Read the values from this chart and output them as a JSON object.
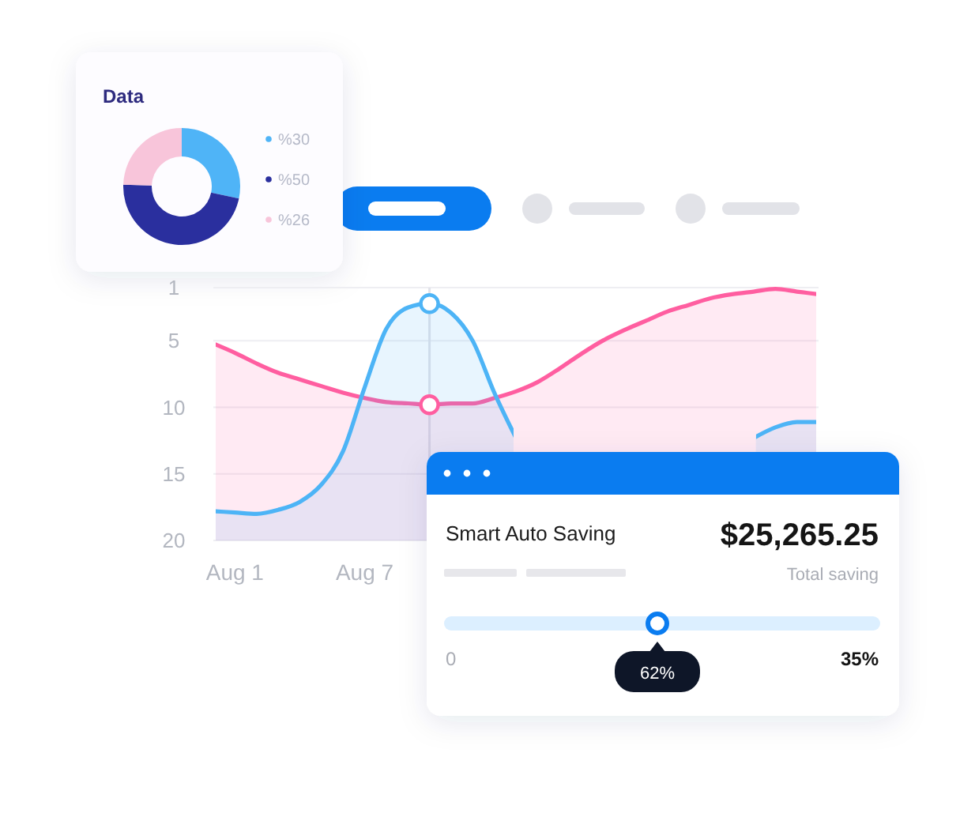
{
  "chart_data": [
    {
      "type": "donut",
      "title": "Data",
      "categories": [
        "%30",
        "%50",
        "%26"
      ],
      "values": [
        30,
        50,
        26
      ],
      "colors": [
        "#4fb4f7",
        "#2a2f9e",
        "#f8c5da"
      ],
      "legend": "right"
    },
    {
      "type": "area",
      "x": [
        "--07-31",
        "--08-01",
        "--08-02",
        "--08-03",
        "--08-04",
        "--08-05",
        "--08-06",
        "--08-07",
        "--08-08",
        "--08-09",
        "--08-10",
        "--08-11",
        "--08-12",
        "--08-13",
        "--08-14",
        "--08-15",
        "--08-16",
        "--08-17",
        "--08-18",
        "--08-19",
        "--08-20",
        "--08-21",
        "--08-22",
        "--08-23",
        "--08-24",
        "--08-25",
        "--08-26",
        "--08-27",
        "--08-28"
      ],
      "series": [
        {
          "color": "#ff5ea0",
          "values": [
            5.2,
            5.9,
            6.7,
            7.4,
            7.9,
            8.4,
            8.9,
            9.3,
            9.6,
            9.7,
            9.8,
            9.7,
            9.7,
            9.3,
            8.8,
            8.1,
            7.1,
            6.0,
            5.0,
            4.2,
            3.5,
            2.8,
            2.3,
            1.8,
            1.5,
            1.3,
            1.1,
            1.3,
            1.5
          ]
        },
        {
          "color": "#4db4f6",
          "values": [
            17.8,
            17.9,
            18,
            17.7,
            17.1,
            15.8,
            13.3,
            8.5,
            4.1,
            2.5,
            2.2,
            2.9,
            5,
            8.9,
            12.3,
            null,
            null,
            null,
            null,
            null,
            null,
            null,
            null,
            null,
            null,
            12.3,
            11.5,
            11.1,
            11.1
          ]
        },
        {
          "type": "scatter",
          "color": "#4db4f6",
          "x": [
            "--08-10"
          ],
          "values": [
            2.2
          ],
          "marker": "circle"
        },
        {
          "type": "scatter",
          "color": "#ff5ea0",
          "x": [
            "--08-10"
          ],
          "values": [
            9.8
          ],
          "marker": "circle"
        }
      ],
      "xlim": [
        "--07-31",
        "--08-28"
      ],
      "xticks": [
        {
          "value": "--08-01",
          "label": "Aug 1"
        },
        {
          "value": "--08-07",
          "label": "Aug 7"
        }
      ],
      "ylim": [
        20,
        1
      ],
      "yticks": [
        1,
        5,
        10,
        15,
        20
      ],
      "grid": "y",
      "ref_lines": [
        {
          "axis": "x",
          "value": "--08-10",
          "color": "#e2e3ea"
        }
      ]
    },
    {
      "type": "other",
      "title": "Smart Auto Saving",
      "annotations": [
        "$25,265.25",
        "Total saving",
        "0",
        "35%",
        "62%"
      ]
    }
  ]
}
